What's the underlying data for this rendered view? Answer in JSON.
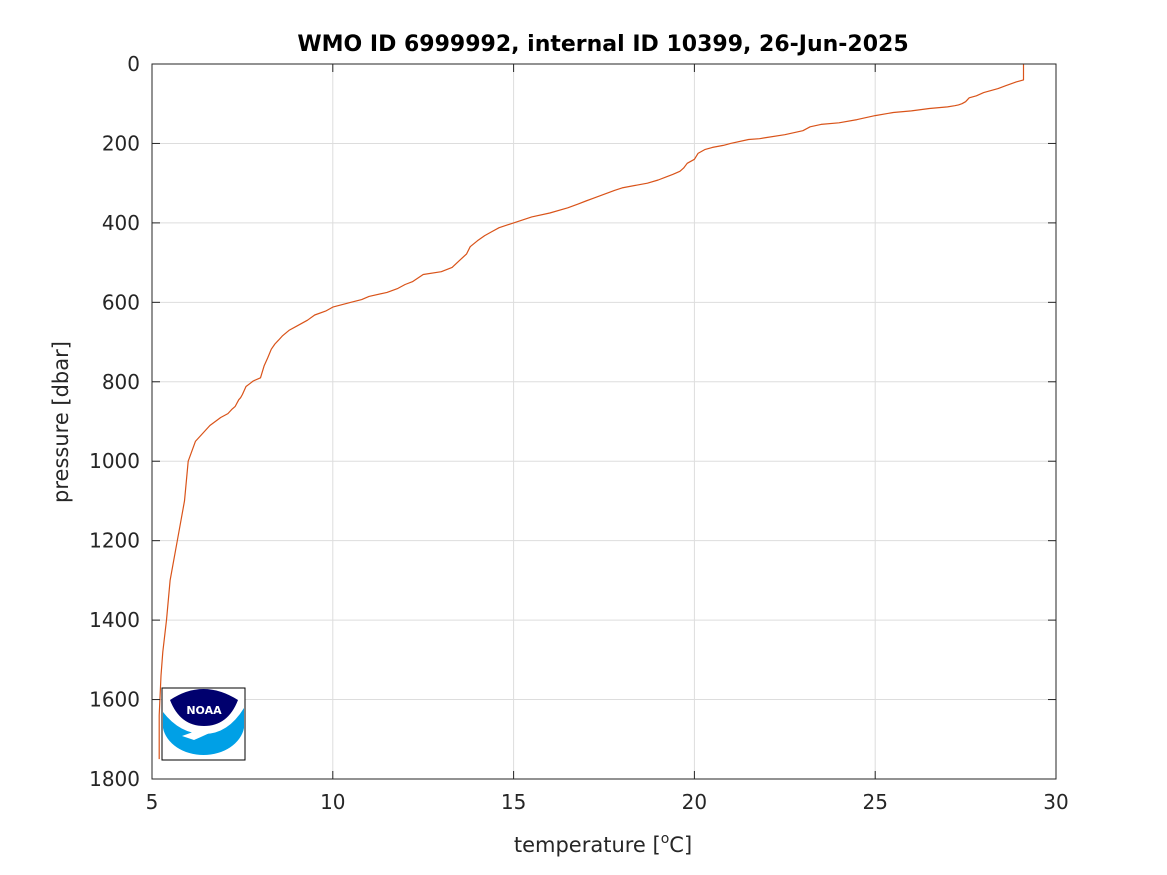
{
  "chart_data": {
    "type": "line",
    "title": "WMO ID 6999992, internal ID 10399, 26-Jun-2025",
    "xlabel": "temperature [",
    "xlabel_sup": "o",
    "xlabel_end": "C]",
    "ylabel": "pressure [dbar]",
    "xlim": [
      5,
      30
    ],
    "ylim": [
      0,
      1800
    ],
    "y_reversed": true,
    "grid": true,
    "x_ticks": [
      5,
      10,
      15,
      20,
      25,
      30
    ],
    "y_ticks": [
      0,
      200,
      400,
      600,
      800,
      1000,
      1200,
      1400,
      1600,
      1800
    ],
    "x_tick_labels": [
      "5",
      "10",
      "15",
      "20",
      "25",
      "30"
    ],
    "y_tick_labels": [
      "0",
      "200",
      "400",
      "600",
      "800",
      "1000",
      "1200",
      "1400",
      "1600",
      "1800"
    ],
    "line_color": "#D95319",
    "series": [
      {
        "x": [
          29.1,
          29.1,
          28.9,
          28.6,
          28.4,
          28.2,
          28.0,
          27.8,
          27.6,
          27.5,
          27.4,
          27.3,
          27.2,
          27.0,
          26.5,
          26.0,
          25.5,
          25.0,
          24.5,
          24.0,
          23.5,
          23.2,
          23.0,
          22.5,
          22.0,
          21.8,
          21.5,
          21.0,
          20.8,
          20.5,
          20.3,
          20.1,
          20.0,
          19.8,
          19.7,
          19.6,
          19.4,
          19.2,
          19.0,
          18.7,
          18.4,
          18.0,
          17.8,
          17.5,
          17.2,
          17.0,
          16.8,
          16.5,
          16.0,
          15.5,
          15.0,
          14.6,
          14.4,
          14.2,
          14.0,
          13.8,
          13.7,
          13.5,
          13.3,
          13.0,
          12.5,
          12.2,
          12.0,
          11.8,
          11.5,
          11.0,
          10.8,
          10.5,
          10.0,
          9.8,
          9.5,
          9.3,
          9.0,
          8.8,
          8.6,
          8.5,
          8.4,
          8.3,
          8.2,
          8.1,
          8.0,
          7.8,
          7.7,
          7.6,
          7.5,
          7.45,
          7.4,
          7.3,
          7.2,
          7.1,
          6.9,
          6.6,
          6.2,
          6.0,
          5.9,
          5.8,
          5.7,
          5.6,
          5.5,
          5.4,
          5.3,
          5.25,
          5.2,
          5.2
        ],
        "y": [
          0,
          40,
          45,
          55,
          62,
          67,
          72,
          80,
          85,
          95,
          100,
          103,
          105,
          108,
          112,
          118,
          122,
          130,
          140,
          148,
          152,
          158,
          168,
          178,
          185,
          188,
          190,
          200,
          205,
          210,
          215,
          225,
          240,
          250,
          262,
          270,
          278,
          285,
          292,
          300,
          305,
          312,
          318,
          328,
          338,
          345,
          352,
          362,
          375,
          385,
          400,
          412,
          422,
          432,
          445,
          460,
          478,
          495,
          512,
          523,
          530,
          548,
          555,
          565,
          575,
          585,
          593,
          600,
          612,
          622,
          632,
          645,
          660,
          670,
          685,
          695,
          705,
          718,
          740,
          760,
          790,
          798,
          805,
          812,
          832,
          840,
          845,
          862,
          870,
          880,
          890,
          910,
          950,
          1000,
          1100,
          1150,
          1200,
          1250,
          1300,
          1400,
          1480,
          1540,
          1640,
          1750
        ]
      }
    ]
  },
  "logo": {
    "text": "NOAA",
    "colors": {
      "dark": "#00006E",
      "light": "#00A0E6"
    }
  }
}
